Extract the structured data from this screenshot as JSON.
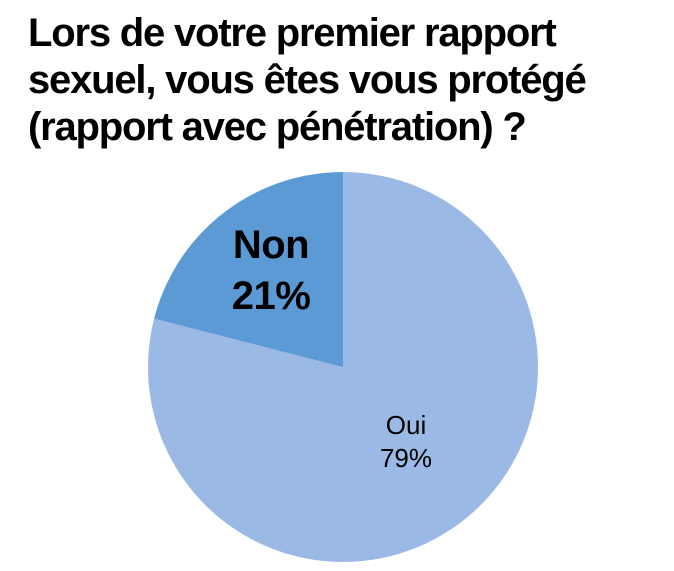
{
  "page": {
    "background_color": "#ffffff",
    "text_color": "#000000"
  },
  "title": {
    "lines": [
      "Lors de votre premier rapport",
      "sexuel, vous êtes vous protégé",
      "(rapport avec pénétration) ?"
    ]
  },
  "chart_data": {
    "type": "pie",
    "title": "Lors de votre premier rapport sexuel, vous êtes vous protégé (rapport avec pénétration) ?",
    "legend_position": "none",
    "start_angle_deg": 0,
    "direction": "clockwise",
    "slices": [
      {
        "label": "Oui",
        "value_pct": 79,
        "value_label": "79%",
        "color": "#9BB9E5",
        "label_weight": "regular"
      },
      {
        "label": "Non",
        "value_pct": 21,
        "value_label": "21%",
        "color": "#5B9AD5",
        "label_weight": "bold"
      }
    ]
  }
}
